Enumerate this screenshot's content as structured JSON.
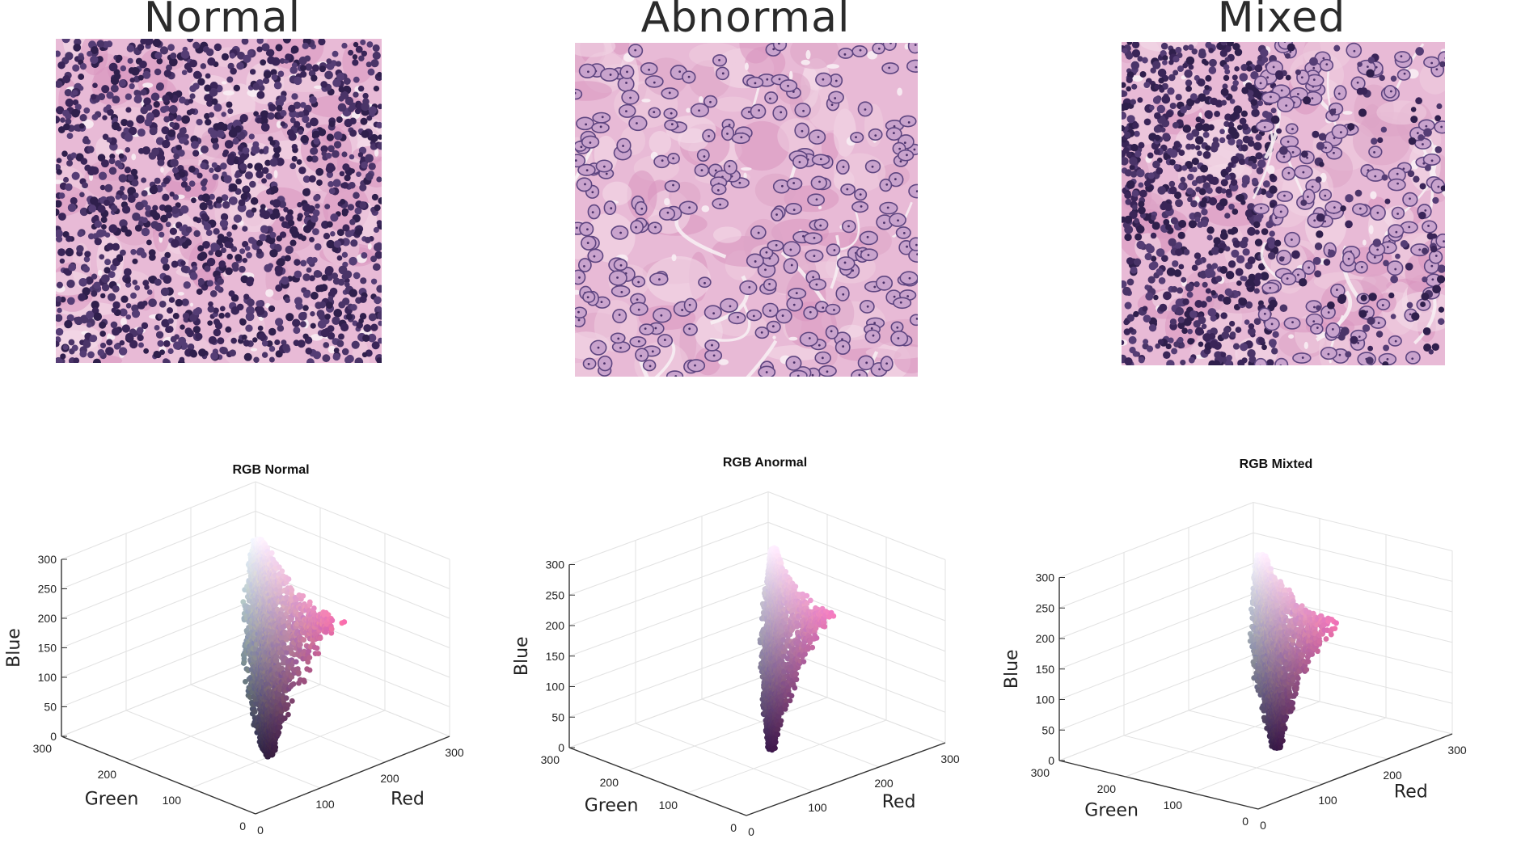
{
  "panels": [
    {
      "title": "Normal",
      "tissue": "normal"
    },
    {
      "title": "Abnormal",
      "tissue": "abnormal"
    },
    {
      "title": "Mixed",
      "tissue": "mixed"
    }
  ],
  "colors": {
    "lymphocyte_nucleus": "#3d2a5e",
    "tumor_nucleus": "#8c6aa0",
    "stroma": "#e6b0cf",
    "background": "#f2d6e6"
  },
  "chart_data": [
    {
      "type": "scatter3d",
      "title": "RGB Normal",
      "xlabel": "Red",
      "ylabel": "Green",
      "zlabel": "Blue",
      "xlim": [
        0,
        300
      ],
      "ylim": [
        0,
        300
      ],
      "zlim": [
        0,
        300
      ],
      "xticks": [
        "0",
        "100",
        "200",
        "300"
      ],
      "yticks": [
        "0",
        "100",
        "200",
        "300"
      ],
      "zticks": [
        "0",
        "50",
        "100",
        "150",
        "200",
        "250",
        "300"
      ],
      "grid": true,
      "cloud": {
        "dark_end": [
          50,
          30,
          65
        ],
        "light_end": [
          245,
          240,
          250
        ],
        "pink_lobe": [
          235,
          120,
          175
        ],
        "spread": 28
      }
    },
    {
      "type": "scatter3d",
      "title": "RGB Anormal",
      "xlabel": "Red",
      "ylabel": "Green",
      "zlabel": "Blue",
      "xlim": [
        0,
        300
      ],
      "ylim": [
        0,
        300
      ],
      "zlim": [
        0,
        300
      ],
      "xticks": [
        "0",
        "100",
        "200",
        "300"
      ],
      "yticks": [
        "0",
        "100",
        "200",
        "300"
      ],
      "zticks": [
        "0",
        "50",
        "100",
        "150",
        "200",
        "250",
        "300"
      ],
      "grid": true,
      "cloud": {
        "dark_end": [
          60,
          25,
          75
        ],
        "light_end": [
          250,
          235,
          250
        ],
        "pink_lobe": [
          235,
          130,
          190
        ],
        "spread": 16
      }
    },
    {
      "type": "scatter3d",
      "title": "RGB Mixted",
      "xlabel": "Red",
      "ylabel": "Green",
      "zlabel": "Blue",
      "xlim": [
        0,
        300
      ],
      "ylim": [
        0,
        300
      ],
      "zlim": [
        0,
        300
      ],
      "xticks": [
        "0",
        "100",
        "200",
        "300"
      ],
      "yticks": [
        "0",
        "100",
        "200",
        "300"
      ],
      "zticks": [
        "0",
        "50",
        "100",
        "150",
        "200",
        "250",
        "300"
      ],
      "grid": true,
      "cloud": {
        "dark_end": [
          55,
          25,
          70
        ],
        "light_end": [
          248,
          238,
          250
        ],
        "pink_lobe": [
          230,
          120,
          180
        ],
        "spread": 22
      }
    }
  ]
}
